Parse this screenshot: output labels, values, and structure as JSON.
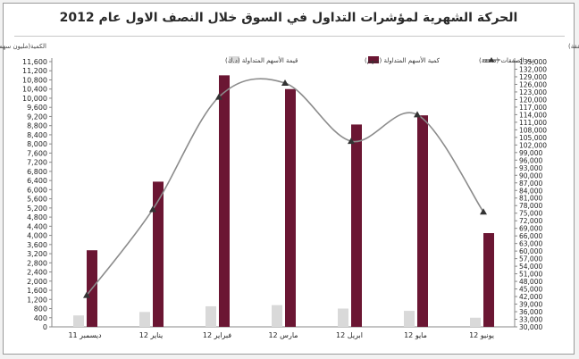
{
  "chart_data": {
    "type": "bar+line",
    "title": "الحركة الشهرية لمؤشرات التداول في السوق خلال النصف الاول عام 2012",
    "left_axis_label": "الكمية(مليون سهم) والقيمة (مليون د.ك)",
    "right_axis_label": "عدد الصفقات (صفقة)",
    "categories": [
      "ديسمبر 11",
      "يناير 12",
      "فبراير 12",
      "مارس 12",
      "ابريل 12",
      "مايو 12",
      "يونيو 12"
    ],
    "left_ylim": [
      0,
      11600
    ],
    "left_ticks": [
      "0",
      "400",
      "800",
      "1,200",
      "1,600",
      "2,000",
      "2,400",
      "2,800",
      "3,200",
      "3,600",
      "4,000",
      "4,400",
      "4,800",
      "5,200",
      "5,600",
      "6,000",
      "6,400",
      "6,800",
      "7,200",
      "7,600",
      "8,000",
      "8,400",
      "8,800",
      "9,200",
      "9,600",
      "10,000",
      "10,400",
      "10,800",
      "11,200",
      "11,600"
    ],
    "right_ylim": [
      30000,
      135000
    ],
    "right_ticks": [
      "30,000",
      "33,000",
      "36,000",
      "39,000",
      "42,000",
      "45,000",
      "48,000",
      "51,000",
      "54,000",
      "57,000",
      "60,000",
      "63,000",
      "66,000",
      "69,000",
      "72,000",
      "75,000",
      "78,000",
      "81,000",
      "84,000",
      "87,000",
      "90,000",
      "93,000",
      "96,000",
      "99,000",
      "102,000",
      "105,000",
      "108,000",
      "111,000",
      "114,000",
      "117,000",
      "120,000",
      "123,000",
      "126,000",
      "129,000",
      "132,000",
      "135,000"
    ],
    "series": [
      {
        "name": "قيمة الأسهم المتداولة (د.ك)",
        "axis": "left",
        "kind": "bar",
        "color": "#d9d9d9",
        "values": [
          500,
          650,
          900,
          950,
          800,
          700,
          400
        ]
      },
      {
        "name": "كمية الأسهم المتداولة (سهم)",
        "axis": "left",
        "kind": "bar",
        "color": "#6b1633",
        "values": [
          3350,
          6350,
          11000,
          10400,
          8850,
          9250,
          4100
        ]
      },
      {
        "name": "عدد الصفقات (صفقة)",
        "axis": "right",
        "kind": "line",
        "color": "#8c8c8c",
        "values": [
          42500,
          76500,
          121000,
          126500,
          103500,
          114000,
          75500
        ]
      }
    ],
    "grid": false,
    "legend_placement": "top"
  }
}
